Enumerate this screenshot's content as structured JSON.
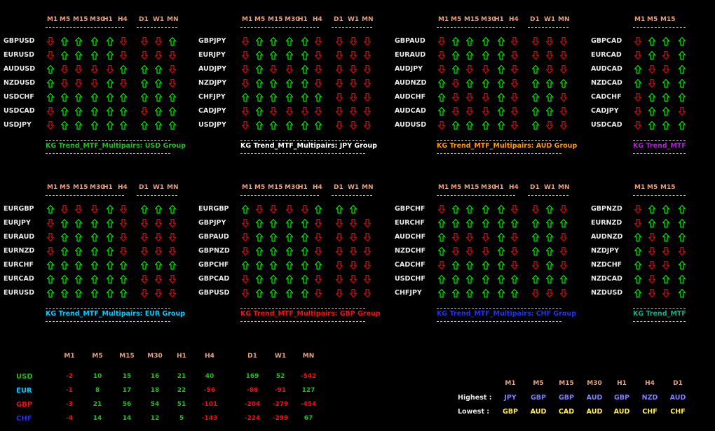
{
  "timeframes": [
    "M1",
    "M5",
    "M15",
    "M30",
    "H1",
    "H4",
    "D1",
    "W1",
    "MN"
  ],
  "colors": {
    "up": "#00e000",
    "down": "#e00000",
    "header": "#e8a07a"
  },
  "panels": [
    {
      "title": "KG Trend_MTF_Multipairs: USD Group",
      "title_color": "#22bb22",
      "pairs": [
        "GBPUSD",
        "EURUSD",
        "AUDUSD",
        "NZDUSD",
        "USDCHF",
        "USDCAD",
        "USDJPY"
      ],
      "trends": [
        "dUUUUd dd U",
        "dUUUUd ddd",
        "UddddU UUd",
        "UdddUd UUd",
        "UUUUUU UUU",
        "dUUUUU dUU",
        "dUUUUU UUU"
      ]
    },
    {
      "title": "KG Trend_MTF_Multipairs: JPY Group",
      "title_color": "#ffffff",
      "pairs": [
        "GBPJPY",
        "EURJPY",
        "AUDJPY",
        "NZDJPY",
        "CHFJPY",
        "CADJPY",
        "USDJPY"
      ],
      "trends": [
        "dUUUUd ddd",
        "dUUUUd ddd",
        "dUddUd ddd",
        "dUUUUd ddd",
        "UUUUUU ddd",
        "dUdddd ddd",
        "dUUUUU ddd"
      ]
    },
    {
      "title": "KG Trend_MTF_Multipairs: AUD Group",
      "title_color": "#ff9900",
      "pairs": [
        "GBPAUD",
        "EURAUD",
        "AUDJPY",
        "AUDNZD",
        "AUDCHF",
        "AUDCAD",
        "AUDUSD"
      ],
      "trends": [
        "dUUUUd ddd",
        "dUUUUd ddd",
        "dUddUd Udd",
        "UdUUUd UUU",
        "UdddUd UUd",
        "UdddUd UUd",
        "dUUUUd Udd"
      ]
    },
    {
      "title": "KG Trend_MTF_Multipairs: CAD Group",
      "title_color": "#aa22cc",
      "pairs": [
        "GBPCAD",
        "EURCAD",
        "AUDCAD",
        "NZDCAD",
        "CADCHF",
        "CADJPY",
        "USDCAD"
      ],
      "trends": [
        "dUUU",
        "dUdU",
        "UddU",
        "UdUU",
        "dUUU",
        "dUUd",
        "dUUU"
      ]
    },
    {
      "title": "KG Trend_MTF_Multipairs: EUR Group",
      "title_color": "#00ccff",
      "pairs": [
        "EURGBP",
        "EURJPY",
        "EURAUD",
        "EURNZD",
        "EURCHF",
        "EURCAD",
        "EURUSD"
      ],
      "trends": [
        "UdddUd UUU",
        "dUUUUd ddd",
        "dUUUUd ddd",
        "dUUUUd ddd",
        "UUUUUU UUU",
        "UUUUUU ddd",
        "UUUUUU ddd"
      ]
    },
    {
      "title": "KG Trend_MTF_Multipairs: GBP Group",
      "title_color": "#ee1111",
      "pairs": [
        "EURGBP",
        "GBPJPY",
        "GBPAUD",
        "GBPNZD",
        "GBPCHF",
        "GBPCAD",
        "GBPUSD"
      ],
      "trends": [
        "Udddd UUU",
        "dUUUUd ddd",
        "dUUUUd ddd",
        "dUUUUd ddd",
        "UUUUUU ddd",
        "dUUUUd ddd",
        "dUUUUd ddd"
      ]
    },
    {
      "title": "KG Trend_MTF_Multipairs: CHF Group",
      "title_color": "#2233ee",
      "pairs": [
        "GBPCHF",
        "EURCHF",
        "AUDCHF",
        "NZDCHF",
        "CADCHF",
        "USDCHF",
        "CHFJPY"
      ],
      "trends": [
        "dUUUUd dUd",
        "UUUUUU UUU",
        "UdddUd UUd",
        "UdddUd UUd",
        "dUUUUd dUd",
        "UUUUUU UUU",
        "UUUUUU ddd"
      ]
    },
    {
      "title": "KG Trend_MTF_Multipairs: NZD Group",
      "title_color": "#11aa88",
      "pairs": [
        "GBPNZD",
        "EURNZD",
        "AUDNZD",
        "NZDJPY",
        "NZDCHF",
        "NZDCAD",
        "NZDUSD"
      ],
      "trends": [
        "dUUU",
        "dUUU",
        "UdUU",
        "Uddd",
        "UddU",
        "UdUU",
        "UddU"
      ]
    }
  ],
  "strength": {
    "currencies": [
      {
        "name": "USD",
        "color": "#22bb22",
        "values": [
          "-2",
          "10",
          "15",
          "16",
          "21",
          "40",
          "169",
          "52",
          "-542"
        ]
      },
      {
        "name": "EUR",
        "color": "#00ccff",
        "values": [
          "-1",
          "8",
          "17",
          "18",
          "22",
          "-56",
          "-86",
          "-91",
          "127"
        ]
      },
      {
        "name": "GBP",
        "color": "#ee1111",
        "values": [
          "-3",
          "21",
          "56",
          "54",
          "51",
          "-101",
          "-204",
          "-279",
          "-454"
        ]
      },
      {
        "name": "CHF",
        "color": "#2233ee",
        "values": [
          "-4",
          "14",
          "14",
          "12",
          "5",
          "-143",
          "-224",
          "-299",
          "67"
        ]
      }
    ],
    "value_colors": [
      "#ee1111",
      "#22bb22",
      "#22bb22",
      "#22bb22",
      "#22bb22",
      "#22bb22",
      "#22bb22",
      "#22bb22",
      "#ee1111"
    ]
  },
  "highlow": {
    "highest_label": "Highest :",
    "lowest_label": "Lowest :",
    "timeframes": [
      "M1",
      "M5",
      "M15",
      "M30",
      "H1",
      "H4",
      "D1"
    ],
    "highest": [
      {
        "v": "JPY",
        "c": "#8080ff"
      },
      {
        "v": "GBP",
        "c": "#8080ff"
      },
      {
        "v": "GBP",
        "c": "#8080ff"
      },
      {
        "v": "AUD",
        "c": "#8080ff"
      },
      {
        "v": "GBP",
        "c": "#8080ff"
      },
      {
        "v": "NZD",
        "c": "#8080ff"
      },
      {
        "v": "AUD",
        "c": "#8080ff"
      }
    ],
    "lowest": [
      {
        "v": "GBP",
        "c": "#ffee44"
      },
      {
        "v": "AUD",
        "c": "#ffee44"
      },
      {
        "v": "CAD",
        "c": "#ffee44"
      },
      {
        "v": "AUD",
        "c": "#ffee44"
      },
      {
        "v": "AUD",
        "c": "#ffee44"
      },
      {
        "v": "CHF",
        "c": "#ffee44"
      },
      {
        "v": "CHF",
        "c": "#ffee44"
      }
    ]
  }
}
